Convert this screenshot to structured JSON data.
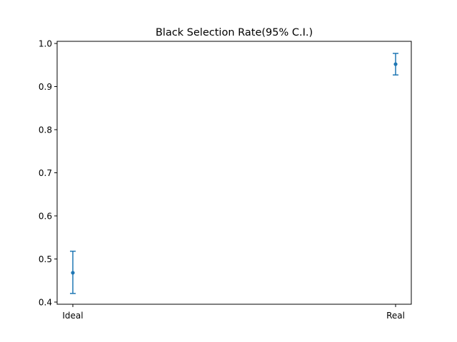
{
  "chart_data": {
    "type": "errorbar",
    "title": "Black Selection Rate(95% C.I.)",
    "xlabel": "",
    "ylabel": "",
    "categories": [
      "Ideal",
      "Real"
    ],
    "values": [
      0.468,
      0.952
    ],
    "ci_lower": [
      0.42,
      0.927
    ],
    "ci_upper": [
      0.518,
      0.977
    ],
    "ylim": [
      0.395,
      1.005
    ],
    "yticks": [
      0.4,
      0.5,
      0.6,
      0.7,
      0.8,
      0.9,
      1.0
    ],
    "ytick_labels": [
      "0.4",
      "0.5",
      "0.6",
      "0.7",
      "0.8",
      "0.9",
      "1.0"
    ],
    "grid": false,
    "legend": false,
    "color": "#1f77b4"
  }
}
